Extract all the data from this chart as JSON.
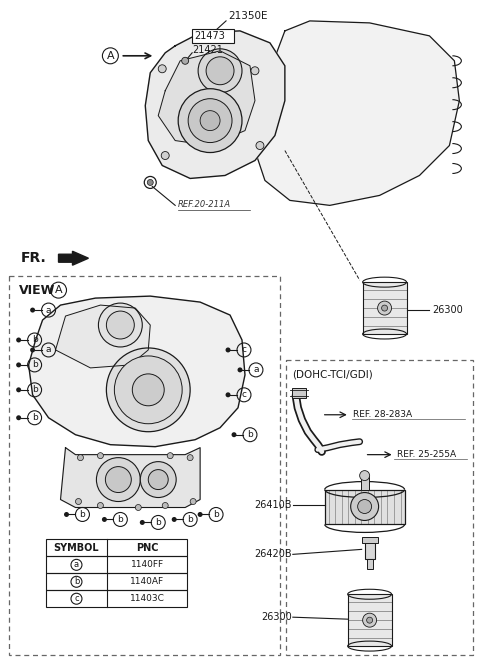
{
  "bg_color": "#ffffff",
  "line_color": "#1a1a1a",
  "table_rows": [
    [
      "SYMBOL",
      "PNC"
    ],
    [
      "a",
      "1140FF"
    ],
    [
      "b",
      "1140AF"
    ],
    [
      "c",
      "11403C"
    ]
  ]
}
